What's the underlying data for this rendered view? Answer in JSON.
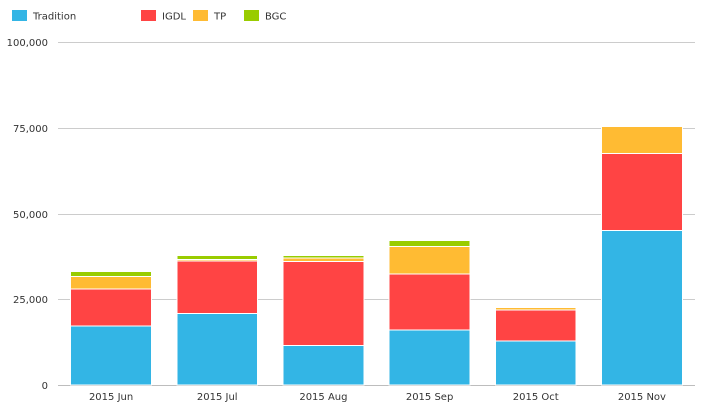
{
  "chart_data": {
    "type": "bar",
    "stacked": true,
    "categories": [
      "2015 Jun",
      "2015 Jul",
      "2015 Aug",
      "2015 Sep",
      "2015 Oct",
      "2015 Nov"
    ],
    "series": [
      {
        "name": "Tradition",
        "color": "#33b5e5",
        "values": [
          17200,
          20800,
          11500,
          16100,
          12900,
          45000
        ]
      },
      {
        "name": "IGDL",
        "color": "#ff4444",
        "values": [
          10800,
          15400,
          24500,
          16200,
          9000,
          22500
        ]
      },
      {
        "name": "TP",
        "color": "#ffbb33",
        "values": [
          3700,
          400,
          1000,
          8100,
          700,
          7800
        ]
      },
      {
        "name": "BGC",
        "color": "#99cc00",
        "values": [
          1400,
          1100,
          700,
          1700,
          300,
          0
        ]
      }
    ],
    "ylim": [
      0,
      100000
    ],
    "yticks": [
      0,
      25000,
      50000,
      75000,
      100000
    ],
    "ytick_labels": [
      "0",
      "25,000",
      "50,000",
      "75,000",
      "100,000"
    ],
    "title": "",
    "xlabel": "",
    "ylabel": "",
    "grid": true,
    "legend_position": "top-left"
  }
}
